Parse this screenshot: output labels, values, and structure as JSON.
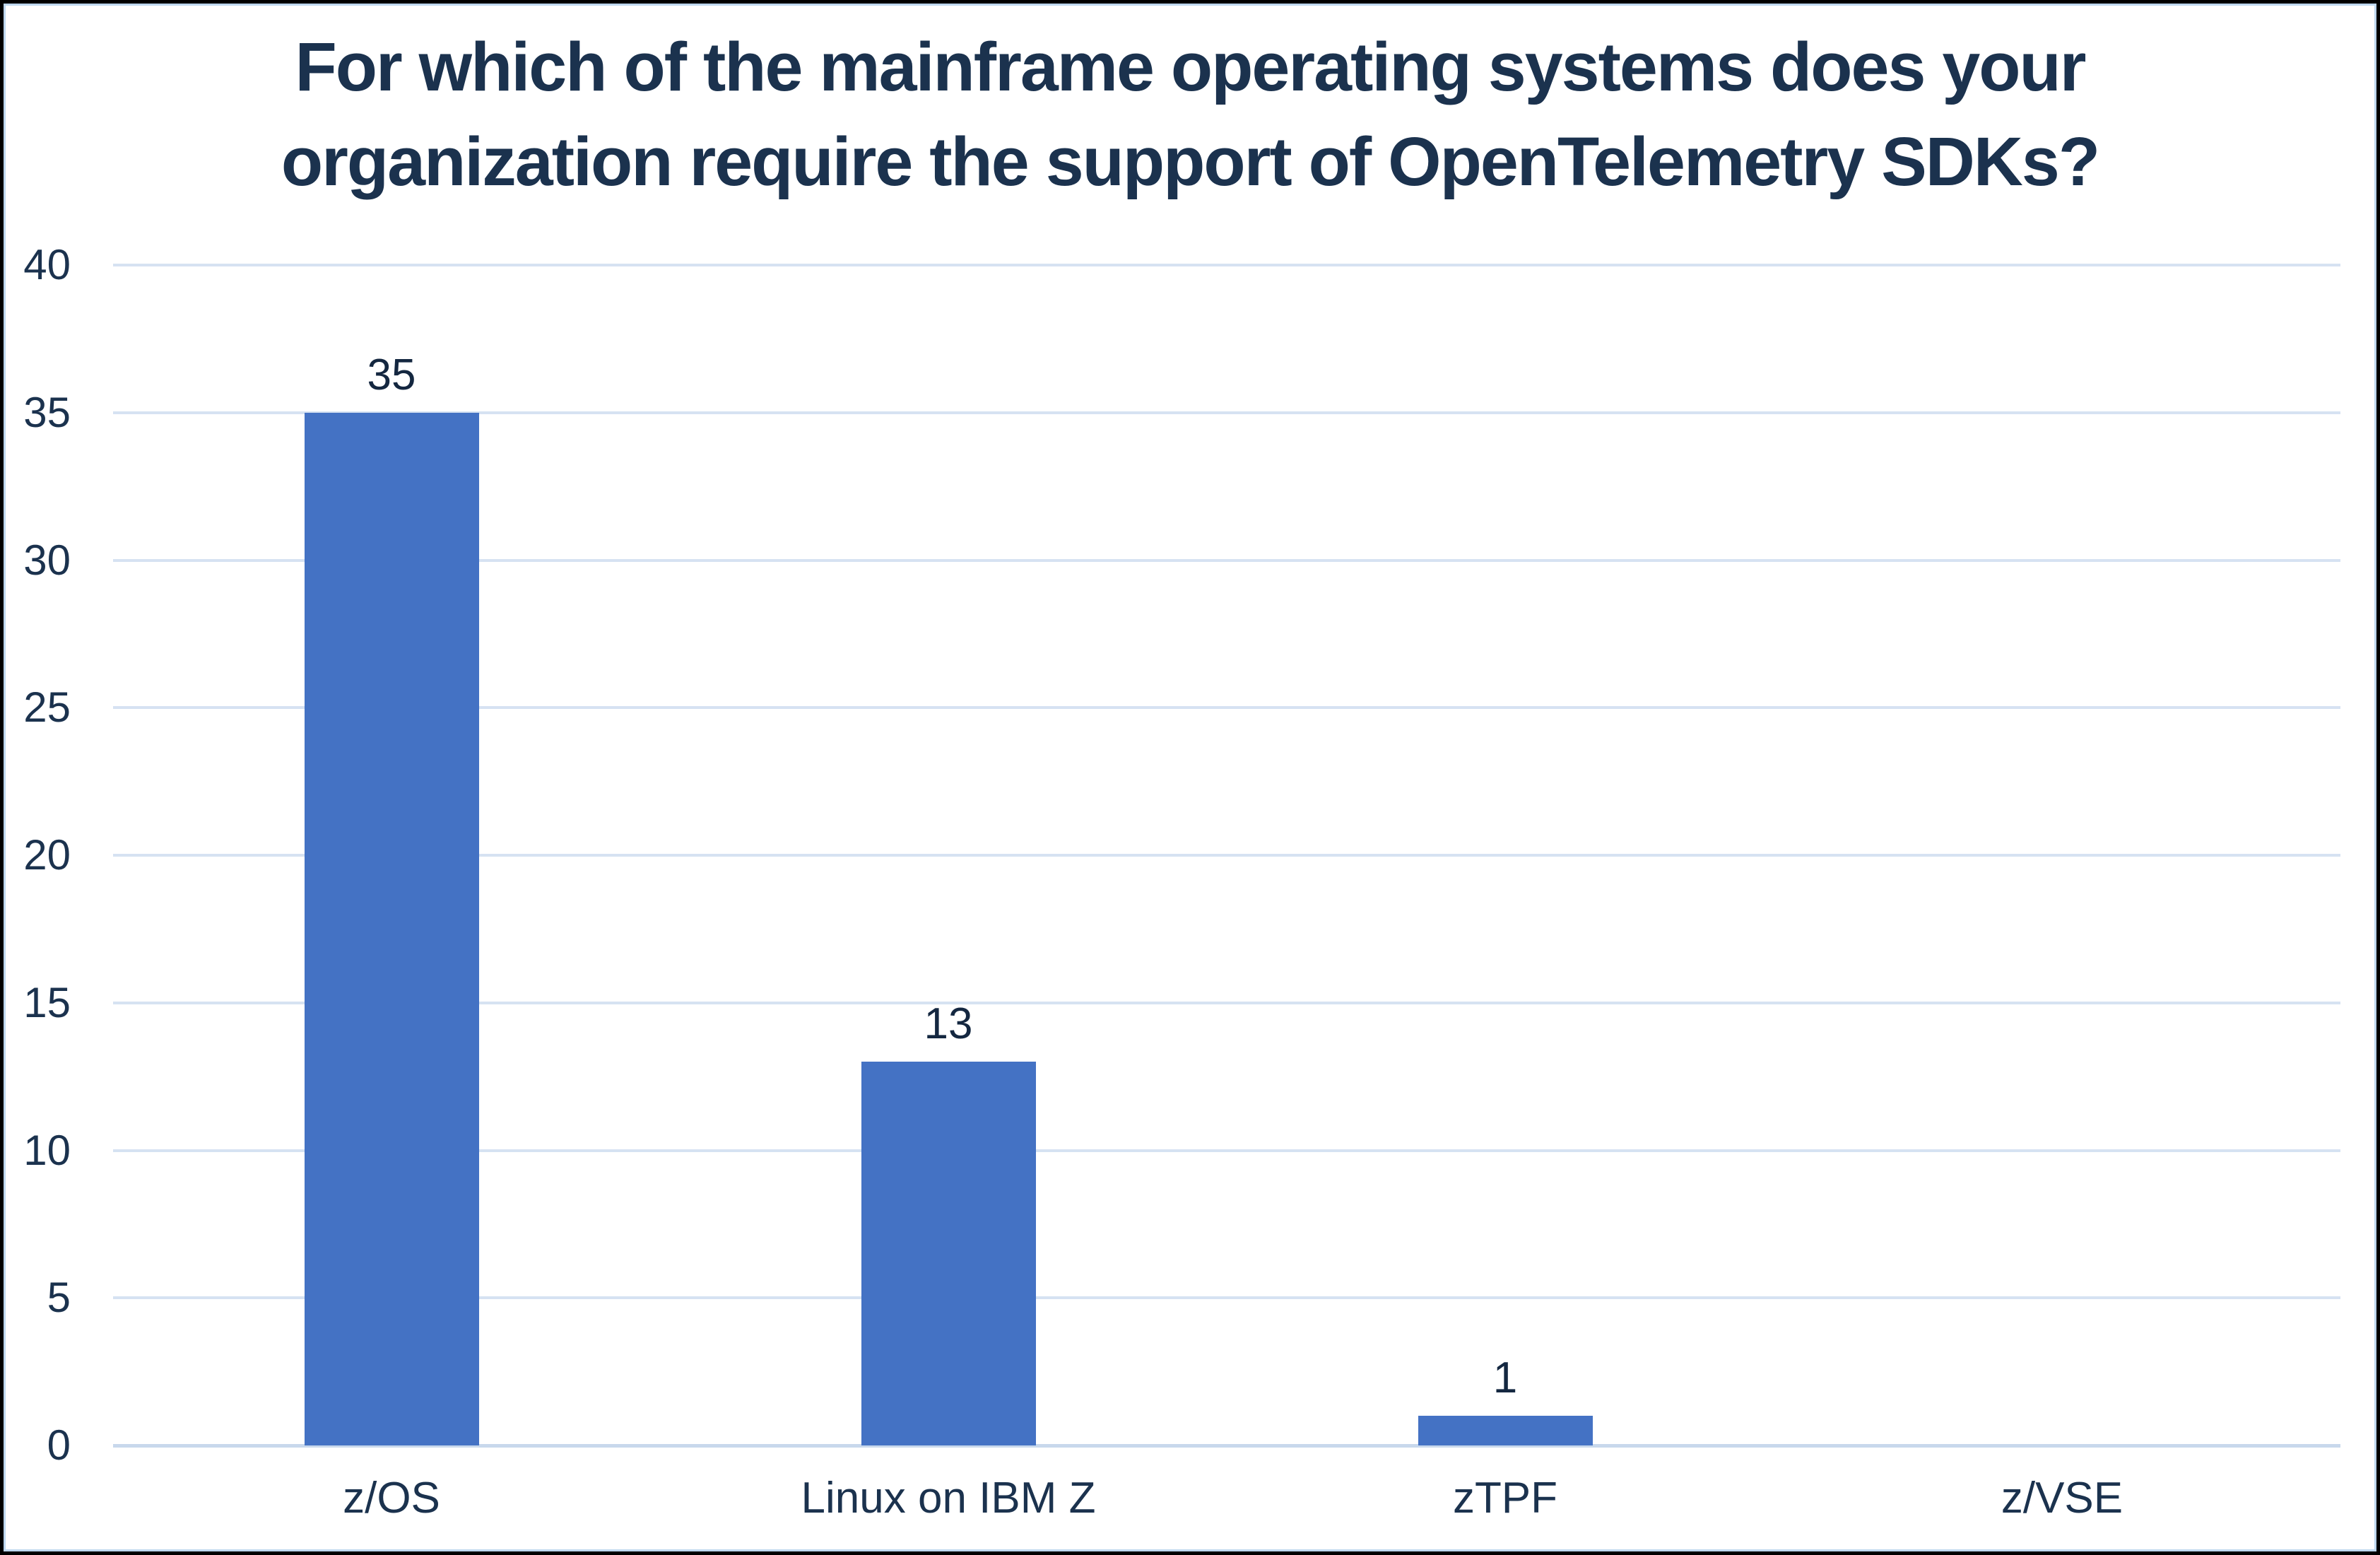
{
  "chart_data": {
    "type": "bar",
    "title": "For which of the mainframe operating systems does your organization require the support of OpenTelemetry SDKs?",
    "title_lines": [
      "For which of the mainframe operating systems does your",
      "organization require the support of OpenTelemetry SDKs?"
    ],
    "categories": [
      "z/OS",
      "Linux on IBM Z",
      "zTPF",
      "z/VSE"
    ],
    "values": [
      35,
      13,
      1,
      0
    ],
    "data_labels": [
      "35",
      "13",
      "1",
      ""
    ],
    "xlabel": "",
    "ylabel": "",
    "y_ticks": [
      0,
      5,
      10,
      15,
      20,
      25,
      30,
      35,
      40
    ],
    "ylim": [
      0,
      40
    ],
    "grid": true,
    "legend": "none",
    "colors": {
      "bar": "#4472c4",
      "text": "#1b324e",
      "gridline": "#d6e2f2",
      "axis_line": "#c8d8ec",
      "inner_frame": "#bdd7ee",
      "outer_frame": "#000000",
      "background": "#ffffff"
    }
  }
}
